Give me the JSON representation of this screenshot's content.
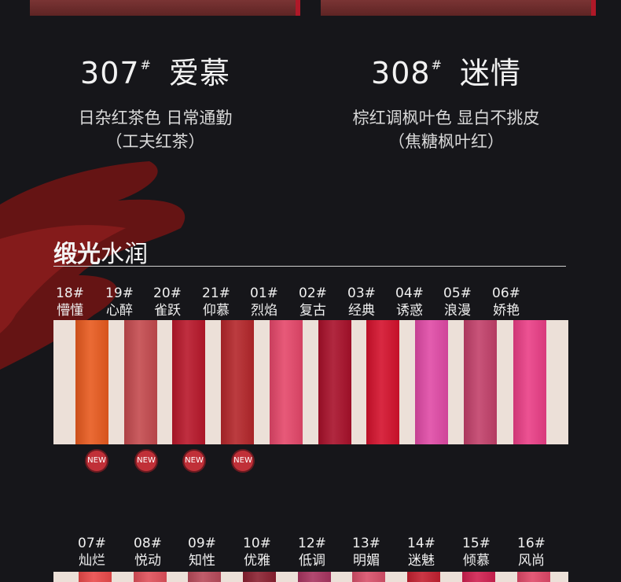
{
  "top_shades": [
    {
      "number": "307",
      "mark": "#",
      "name": "爱慕",
      "line1": "日杂红茶色 日常通勤",
      "line2": "（工夫红茶）"
    },
    {
      "number": "308",
      "mark": "#",
      "name": "迷情",
      "line1": "棕红调枫叶色 显白不挑皮",
      "line2": "（焦糖枫叶红）"
    }
  ],
  "section": {
    "title_bold": "缎光",
    "title_thin": "水润"
  },
  "row1": [
    {
      "code": "18#",
      "name": "懵懂",
      "color": "#e85a1e",
      "badge": "NEW"
    },
    {
      "code": "19#",
      "name": "心醉",
      "color": "#c44a4e",
      "badge": "NEW"
    },
    {
      "code": "20#",
      "name": "雀跃",
      "color": "#b8172a",
      "badge": "NEW"
    },
    {
      "code": "21#",
      "name": "仰慕",
      "color": "#b4262a",
      "badge": "NEW"
    },
    {
      "code": "01#",
      "name": "烈焰",
      "color": "#e5476a",
      "badge": ""
    },
    {
      "code": "02#",
      "name": "复古",
      "color": "#a8102a",
      "badge": ""
    },
    {
      "code": "03#",
      "name": "经典",
      "color": "#d4112c",
      "badge": ""
    },
    {
      "code": "04#",
      "name": "诱惑",
      "color": "#e04aa6",
      "badge": ""
    },
    {
      "code": "05#",
      "name": "浪漫",
      "color": "#c2406a",
      "badge": ""
    },
    {
      "code": "06#",
      "name": "娇艳",
      "color": "#ea3e86",
      "badge": ""
    }
  ],
  "row2": [
    {
      "code": "07#",
      "name": "灿烂",
      "color": "#ea4a4a"
    },
    {
      "code": "08#",
      "name": "悦动",
      "color": "#e0505a"
    },
    {
      "code": "09#",
      "name": "知性",
      "color": "#b84a5a"
    },
    {
      "code": "10#",
      "name": "优雅",
      "color": "#8a2030"
    },
    {
      "code": "12#",
      "name": "低调",
      "color": "#a83460"
    },
    {
      "code": "13#",
      "name": "明媚",
      "color": "#d8506a"
    },
    {
      "code": "14#",
      "name": "迷魅",
      "color": "#c42030"
    },
    {
      "code": "15#",
      "name": "倾慕",
      "color": "#d02050"
    },
    {
      "code": "16#",
      "name": "风尚",
      "color": "#e04868"
    }
  ]
}
